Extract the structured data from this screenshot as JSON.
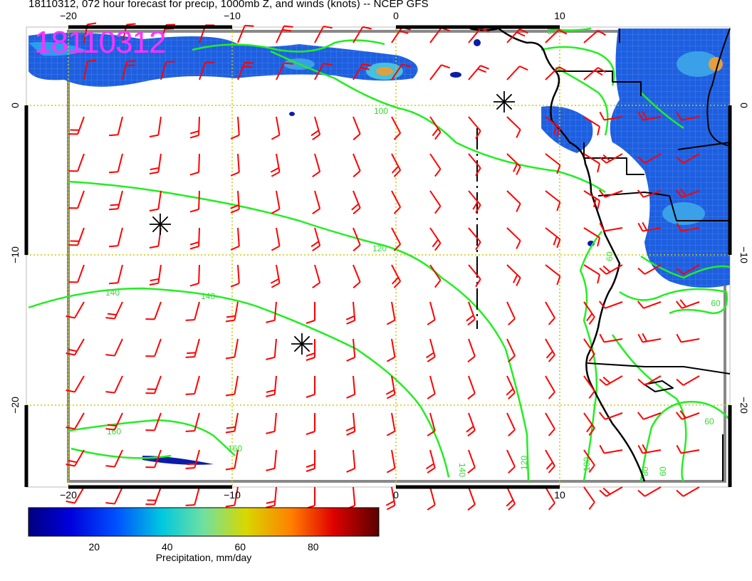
{
  "title": "18110312, 072 hour forecast for precip, 1000mb Z, and winds (knots) -- NCEP GFS",
  "stamp": "18110312",
  "map": {
    "lon_range": [
      -22.5,
      20
    ],
    "lat_range": [
      -25.5,
      5
    ],
    "lon_ticks": [
      "−20",
      "−10",
      "0",
      "10"
    ],
    "lat_ticks": [
      "0",
      "−10",
      "−20"
    ],
    "colors": {
      "wind_barb": "#ff0000",
      "contour": "#22ee22",
      "grid": "#cccc00",
      "coast": "#000000",
      "stamp": "#ff33ff"
    },
    "contour_labels": [
      "100",
      "120",
      "140",
      "140",
      "160",
      "160",
      "140",
      "120",
      "100",
      "60",
      "60",
      "60",
      "80",
      "60",
      "80"
    ],
    "markers": [
      "asterisk",
      "asterisk",
      "asterisk"
    ]
  },
  "colorbar": {
    "title": "Precipitation, mm/day",
    "ticks": [
      "20",
      "40",
      "60",
      "80"
    ],
    "tick_values": [
      20,
      40,
      60,
      80
    ],
    "range": [
      2,
      98
    ]
  }
}
